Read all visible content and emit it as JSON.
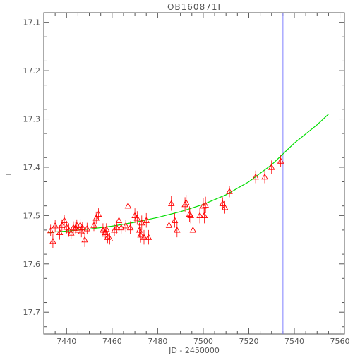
{
  "chart_data": {
    "type": "scatter",
    "title": "OB160871I",
    "xlabel": "JD - 2450000",
    "ylabel": "I",
    "xlim": [
      7430,
      7562
    ],
    "ylim": [
      17.745,
      17.08
    ],
    "y_inverted": true,
    "x_ticks": [
      7440,
      7460,
      7480,
      7500,
      7520,
      7540,
      7560
    ],
    "y_ticks": [
      17.1,
      17.2,
      17.3,
      17.4,
      17.5,
      17.6,
      17.7
    ],
    "grid": false,
    "vertical_line": {
      "x": 7535,
      "color": "#8080ff"
    },
    "points": {
      "name": "",
      "color": "#ff0000",
      "marker": "triangle",
      "x": [
        7433,
        7434,
        7435,
        7437,
        7438,
        7439,
        7440,
        7441,
        7442,
        7443,
        7444,
        7444.5,
        7445,
        7446,
        7446.5,
        7447,
        7448,
        7449,
        7452,
        7453,
        7454,
        7456,
        7457,
        7457.5,
        7458,
        7459,
        7461,
        7462,
        7463,
        7464,
        7466,
        7467,
        7468,
        7470,
        7471,
        7472,
        7472.5,
        7473,
        7474,
        7475,
        7476,
        7485,
        7486,
        7487.5,
        7488.5,
        7492,
        7492.5,
        7494,
        7494.5,
        7495.5,
        7498.5,
        7500,
        7500.5,
        7501,
        7508.5,
        7509.5,
        7511.5,
        7523,
        7527,
        7530,
        7534
      ],
      "y": [
        17.531,
        17.553,
        17.521,
        17.535,
        17.52,
        17.51,
        17.524,
        17.53,
        17.536,
        17.525,
        17.526,
        17.52,
        17.53,
        17.52,
        17.533,
        17.525,
        17.55,
        17.527,
        17.52,
        17.505,
        17.497,
        17.53,
        17.535,
        17.528,
        17.545,
        17.548,
        17.53,
        17.525,
        17.51,
        17.525,
        17.521,
        17.48,
        17.525,
        17.5,
        17.505,
        17.53,
        17.54,
        17.515,
        17.545,
        17.51,
        17.545,
        17.52,
        17.475,
        17.51,
        17.53,
        17.477,
        17.473,
        17.497,
        17.5,
        17.53,
        17.5,
        17.48,
        17.5,
        17.478,
        17.475,
        17.483,
        17.45,
        17.42,
        17.42,
        17.4,
        17.387
      ],
      "err": [
        0.012,
        0.015,
        0.012,
        0.015,
        0.012,
        0.012,
        0.013,
        0.014,
        0.012,
        0.013,
        0.012,
        0.012,
        0.012,
        0.013,
        0.012,
        0.012,
        0.015,
        0.012,
        0.012,
        0.013,
        0.012,
        0.014,
        0.012,
        0.012,
        0.012,
        0.012,
        0.012,
        0.012,
        0.013,
        0.012,
        0.012,
        0.015,
        0.013,
        0.015,
        0.014,
        0.015,
        0.016,
        0.015,
        0.015,
        0.015,
        0.015,
        0.015,
        0.015,
        0.015,
        0.015,
        0.015,
        0.016,
        0.016,
        0.016,
        0.015,
        0.016,
        0.017,
        0.016,
        0.017,
        0.013,
        0.013,
        0.012,
        0.013,
        0.013,
        0.014,
        0.012
      ]
    },
    "model": {
      "name": "",
      "color": "#00dd00",
      "x": [
        7432,
        7440,
        7450,
        7460,
        7470,
        7480,
        7490,
        7500,
        7510,
        7520,
        7530,
        7540,
        7550,
        7555
      ],
      "y": [
        17.535,
        17.532,
        17.528,
        17.522,
        17.514,
        17.504,
        17.492,
        17.477,
        17.457,
        17.43,
        17.395,
        17.35,
        17.312,
        17.29
      ]
    }
  }
}
